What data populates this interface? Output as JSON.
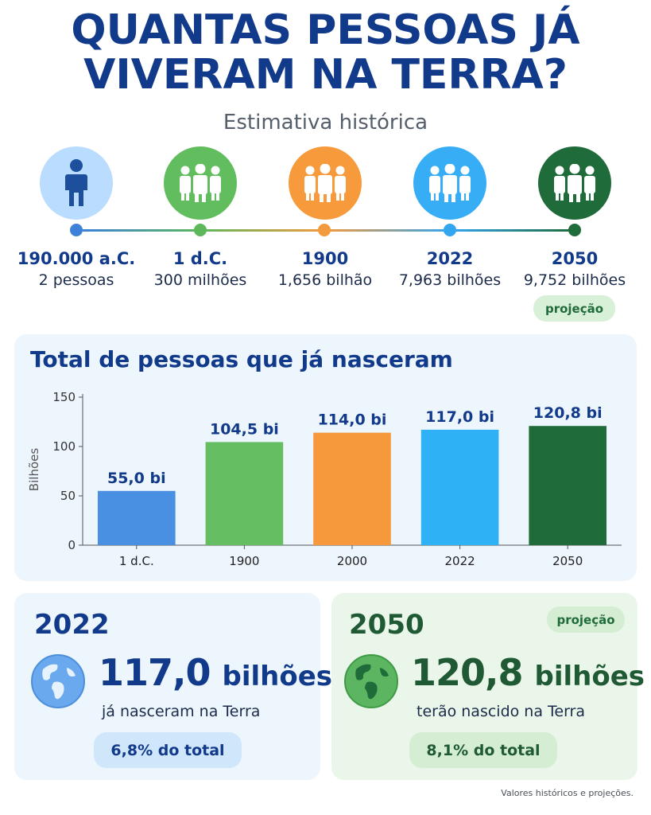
{
  "title": {
    "line1": "QUANTAS PESSOAS JÁ",
    "line2": "VIVERAM NA TERRA?",
    "subtitle": "Estimativa histórica"
  },
  "timeline": [
    {
      "year": "190.000 a.C.",
      "value": "2 pessoas",
      "icon": "person-icon",
      "color": "#3d82d8",
      "circle_bg": "#b9dcff"
    },
    {
      "year": "1 d.C.",
      "value": "300 milhões",
      "icon": "group-icon",
      "color": "#5db85c",
      "circle_bg": "#62bd5e"
    },
    {
      "year": "1900",
      "value": "1,656 bilhão",
      "icon": "group-icon",
      "color": "#f39a3c",
      "circle_bg": "#f69a3b"
    },
    {
      "year": "2022",
      "value": "7,963 bilhões",
      "icon": "group-icon",
      "color": "#32a6f0",
      "circle_bg": "#36adf4"
    },
    {
      "year": "2050",
      "value": "9,752 bilhões",
      "icon": "group-icon",
      "color": "#1f6b3a",
      "circle_bg": "#1f6b3a"
    }
  ],
  "projection_label": "projeção",
  "chart_data": {
    "type": "bar",
    "title": "Total de pessoas que já nasceram",
    "ylabel": "Bilhões",
    "xlabel": "",
    "ylim": [
      0,
      150
    ],
    "yticks": [
      0,
      50,
      100,
      150
    ],
    "categories": [
      "1 d.C.",
      "1900",
      "2000",
      "2022",
      "2050"
    ],
    "values": [
      55.0,
      104.5,
      114.0,
      117.0,
      120.8
    ],
    "value_labels": [
      "55,0 bi",
      "104,5 bi",
      "114,0 bi",
      "117,0 bi",
      "120,8 bi"
    ],
    "colors": [
      "#4a90e2",
      "#65bf62",
      "#f6993c",
      "#2fb1f6",
      "#1f6b3a"
    ],
    "grid": false,
    "legend": "none"
  },
  "cards": {
    "left": {
      "year": "2022",
      "number": "117,0",
      "unit": "bilhões",
      "caption": "já nasceram na Terra",
      "pill": "6,8% do total",
      "icon": "globe-icon"
    },
    "right": {
      "year": "2050",
      "badge": "projeção",
      "number": "120,8",
      "unit": "bilhões",
      "caption": "terão nascido na Terra",
      "pill": "8,1% do total",
      "icon": "globe-icon"
    }
  },
  "footnote": "Valores históricos e projeções.",
  "colors": {
    "title": "#123a8a",
    "dark_green": "#1f6b3a",
    "panel_blue": "#edf5fd",
    "panel_green": "#eaf6ea"
  }
}
